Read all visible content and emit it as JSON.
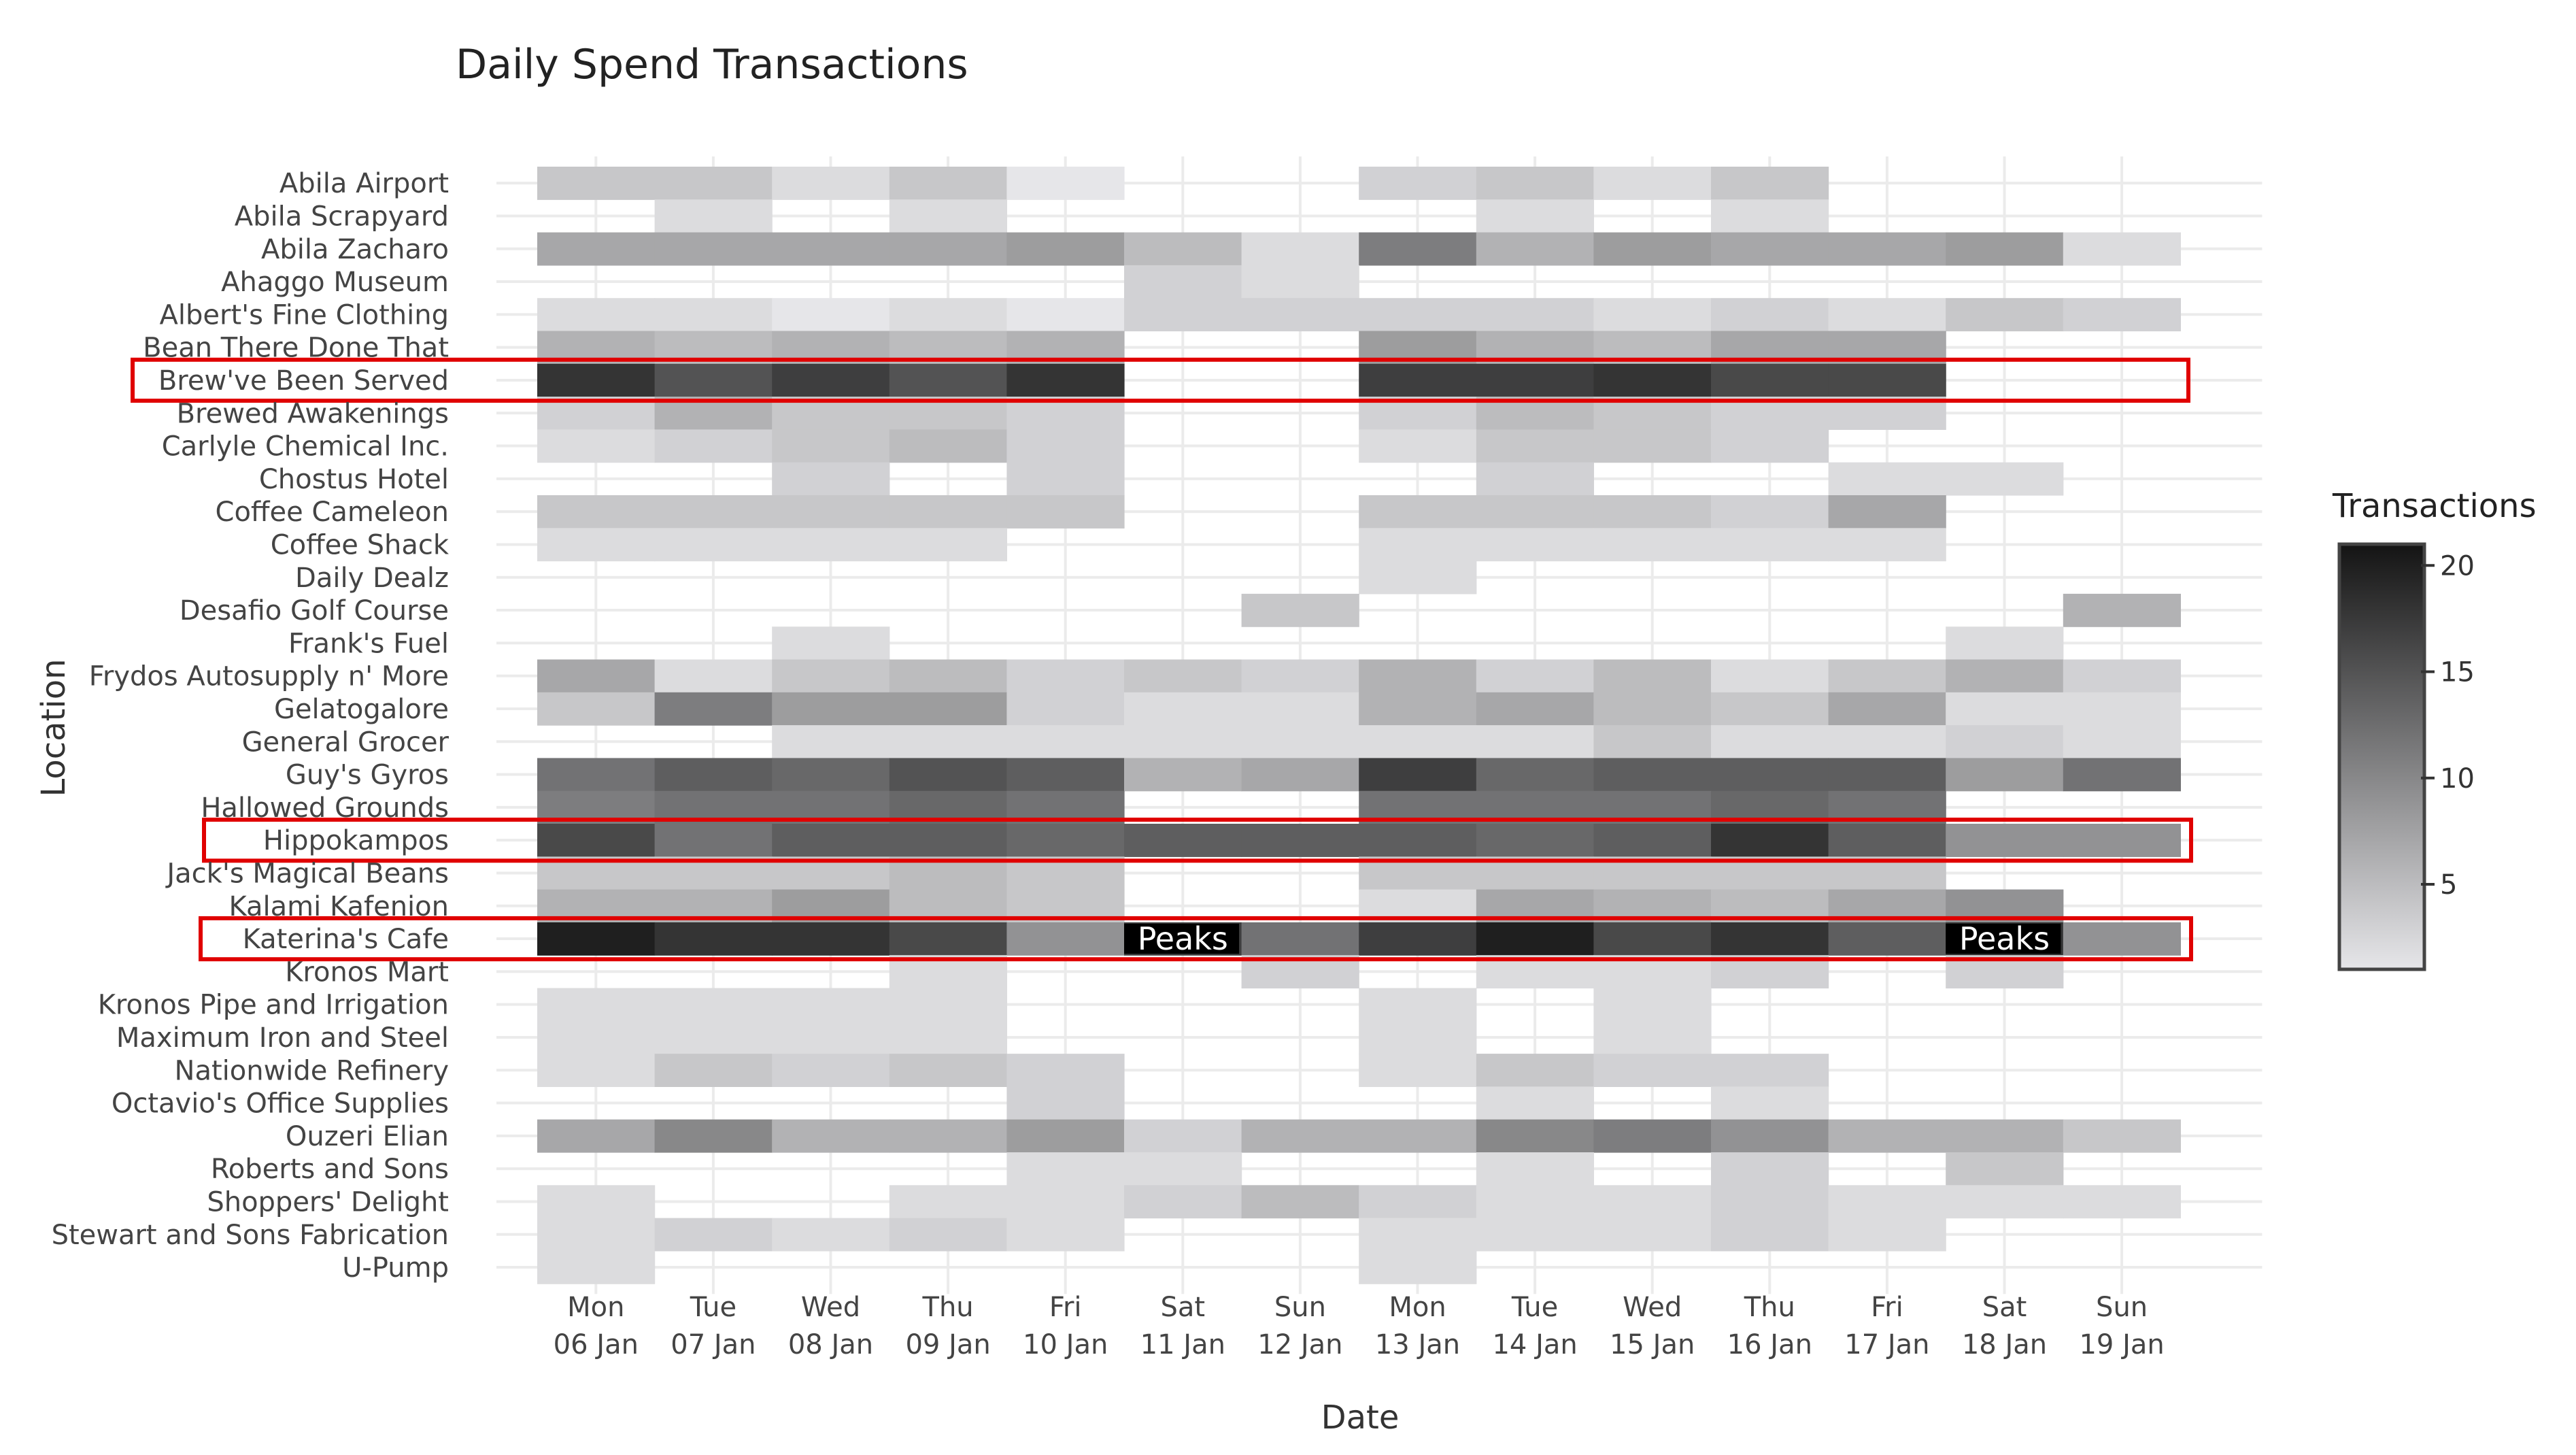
{
  "chart_data": {
    "type": "heatmap",
    "title": "Daily Spend Transactions",
    "xlabel": "Date",
    "ylabel": "Location",
    "legend": {
      "title": "Transactions",
      "ticks": [
        5,
        10,
        15,
        20
      ],
      "range": [
        1,
        21
      ],
      "placement": "right"
    },
    "grid": true,
    "x": [
      [
        "Mon",
        "06 Jan"
      ],
      [
        "Tue",
        "07 Jan"
      ],
      [
        "Wed",
        "08 Jan"
      ],
      [
        "Thu",
        "09 Jan"
      ],
      [
        "Fri",
        "10 Jan"
      ],
      [
        "Sat",
        "11 Jan"
      ],
      [
        "Sun",
        "12 Jan"
      ],
      [
        "Mon",
        "13 Jan"
      ],
      [
        "Tue",
        "14 Jan"
      ],
      [
        "Wed",
        "15 Jan"
      ],
      [
        "Thu",
        "16 Jan"
      ],
      [
        "Fri",
        "17 Jan"
      ],
      [
        "Sat",
        "18 Jan"
      ],
      [
        "Sun",
        "19 Jan"
      ]
    ],
    "y": [
      "Abila Airport",
      "Abila Scrapyard",
      "Abila Zacharo",
      "Ahaggo Museum",
      "Albert's Fine Clothing",
      "Bean There Done That",
      "Brew've Been Served",
      "Brewed Awakenings",
      "Carlyle Chemical Inc.",
      "Chostus Hotel",
      "Coffee Cameleon",
      "Coffee Shack",
      "Daily Dealz",
      "Desafio Golf Course",
      "Frank's Fuel",
      "Frydos Autosupply n' More",
      "Gelatogalore",
      "General Grocer",
      "Guy's Gyros",
      "Hallowed Grounds",
      "Hippokampos",
      "Jack's Magical Beans",
      "Kalami Kafenion",
      "Katerina's Cafe",
      "Kronos Mart",
      "Kronos Pipe and Irrigation",
      "Maximum Iron and Steel",
      "Nationwide Refinery",
      "Octavio's Office Supplies",
      "Ouzeri Elian",
      "Roberts and Sons",
      "Shoppers' Delight",
      "Stewart and Sons Fabrication",
      "U-Pump"
    ],
    "z": [
      [
        4,
        4,
        2,
        4,
        1,
        null,
        null,
        3,
        4,
        2,
        4,
        null,
        null,
        null
      ],
      [
        null,
        2,
        null,
        2,
        null,
        null,
        null,
        null,
        2,
        null,
        2,
        null,
        null,
        null
      ],
      [
        7,
        7,
        7,
        7,
        8,
        5,
        2,
        11,
        6,
        8,
        7,
        7,
        8,
        2
      ],
      [
        null,
        null,
        null,
        null,
        null,
        3,
        2,
        null,
        null,
        null,
        null,
        null,
        null,
        null
      ],
      [
        2,
        2,
        1,
        2,
        1,
        3,
        3,
        3,
        3,
        2,
        3,
        2,
        4,
        3
      ],
      [
        6,
        5,
        6,
        5,
        6,
        null,
        null,
        8,
        6,
        5,
        7,
        7,
        null,
        null
      ],
      [
        18,
        15,
        17,
        15,
        18,
        null,
        null,
        17,
        17,
        18,
        16,
        16,
        null,
        null
      ],
      [
        3,
        6,
        4,
        4,
        3,
        null,
        null,
        3,
        5,
        4,
        3,
        3,
        null,
        null
      ],
      [
        2,
        3,
        4,
        5,
        3,
        null,
        null,
        2,
        4,
        4,
        3,
        null,
        null,
        null
      ],
      [
        null,
        null,
        3,
        null,
        3,
        null,
        null,
        null,
        3,
        null,
        null,
        2,
        2,
        null
      ],
      [
        4,
        4,
        4,
        4,
        4,
        null,
        null,
        4,
        4,
        4,
        3,
        7,
        null,
        null
      ],
      [
        2,
        2,
        2,
        2,
        null,
        null,
        null,
        2,
        2,
        2,
        2,
        2,
        null,
        null
      ],
      [
        null,
        null,
        null,
        null,
        null,
        null,
        null,
        2,
        null,
        null,
        null,
        null,
        null,
        null
      ],
      [
        null,
        null,
        null,
        null,
        null,
        null,
        4,
        null,
        null,
        null,
        null,
        null,
        null,
        6
      ],
      [
        null,
        null,
        2,
        null,
        null,
        null,
        null,
        null,
        null,
        null,
        null,
        null,
        2,
        null
      ],
      [
        7,
        2,
        4,
        5,
        3,
        4,
        3,
        6,
        3,
        5,
        2,
        4,
        6,
        3
      ],
      [
        4,
        11,
        8,
        8,
        3,
        2,
        2,
        6,
        7,
        5,
        4,
        7,
        2,
        2
      ],
      [
        null,
        null,
        2,
        2,
        2,
        2,
        2,
        2,
        2,
        4,
        2,
        2,
        3,
        2
      ],
      [
        12,
        14,
        13,
        15,
        14,
        6,
        7,
        17,
        13,
        14,
        14,
        14,
        8,
        12
      ],
      [
        11,
        12,
        12,
        13,
        12,
        null,
        null,
        12,
        12,
        12,
        13,
        12,
        null,
        null
      ],
      [
        16,
        12,
        14,
        14,
        13,
        14,
        14,
        14,
        13,
        14,
        18,
        14,
        9,
        9
      ],
      [
        4,
        4,
        4,
        5,
        4,
        null,
        null,
        4,
        4,
        4,
        4,
        4,
        null,
        null
      ],
      [
        6,
        6,
        8,
        5,
        4,
        null,
        null,
        2,
        7,
        6,
        5,
        7,
        9,
        null
      ],
      [
        20,
        18,
        18,
        16,
        9,
        17,
        12,
        17,
        20,
        16,
        18,
        14,
        18,
        9
      ],
      [
        null,
        null,
        null,
        2,
        null,
        null,
        3,
        null,
        2,
        2,
        3,
        null,
        3,
        null
      ],
      [
        2,
        2,
        2,
        2,
        null,
        null,
        null,
        2,
        null,
        2,
        null,
        null,
        null,
        null
      ],
      [
        2,
        2,
        2,
        2,
        null,
        null,
        null,
        2,
        null,
        2,
        null,
        null,
        null,
        null
      ],
      [
        2,
        4,
        3,
        4,
        3,
        null,
        null,
        2,
        4,
        3,
        3,
        null,
        null,
        null
      ],
      [
        null,
        null,
        null,
        null,
        3,
        null,
        null,
        null,
        2,
        null,
        2,
        null,
        null,
        null
      ],
      [
        7,
        10,
        6,
        6,
        8,
        3,
        6,
        6,
        10,
        11,
        9,
        6,
        6,
        4
      ],
      [
        null,
        null,
        null,
        null,
        2,
        2,
        null,
        null,
        2,
        null,
        3,
        null,
        4,
        null
      ],
      [
        2,
        null,
        null,
        2,
        2,
        3,
        5,
        3,
        2,
        2,
        3,
        2,
        2,
        2
      ],
      [
        2,
        3,
        2,
        3,
        2,
        null,
        null,
        2,
        2,
        2,
        3,
        2,
        null,
        null
      ],
      [
        2,
        null,
        null,
        null,
        null,
        null,
        null,
        2,
        null,
        null,
        null,
        null,
        null,
        null
      ]
    ],
    "highlight_rows": [
      "Brew've Been Served",
      "Hippokampos",
      "Katerina's Cafe"
    ],
    "annotations": [
      {
        "text": "Peaks",
        "location": "Katerina's Cafe",
        "date_index": 5
      },
      {
        "text": "Peaks",
        "location": "Katerina's Cafe",
        "date_index": 12
      }
    ],
    "colors": {
      "low": "#e6e6e9",
      "high": "#141414",
      "highlight": "#e00000",
      "grid": "#ebebeb"
    }
  }
}
